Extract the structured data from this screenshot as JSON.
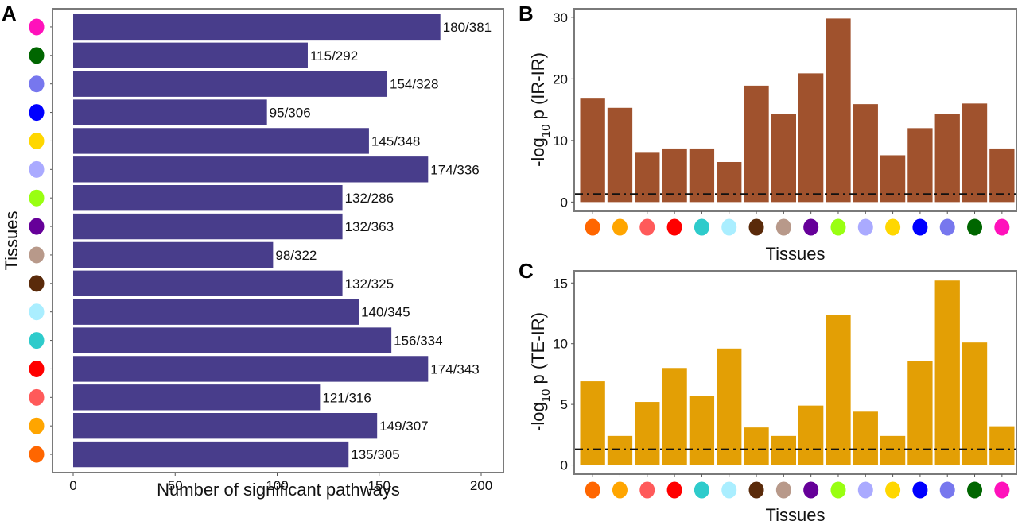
{
  "figure": {
    "panels": [
      "A",
      "B",
      "C"
    ]
  },
  "tissue_colors": [
    "#FF6600",
    "#FFA500",
    "#FF5A5A",
    "#FF0000",
    "#2ECBCB",
    "#AAEEFF",
    "#5A2A0A",
    "#B8998A",
    "#660099",
    "#99FF11",
    "#AAAAFF",
    "#FFD700",
    "#0000FF",
    "#7777EE",
    "#006600",
    "#FF11BB"
  ],
  "chart_data": [
    {
      "panel": "A",
      "type": "bar",
      "orientation": "horizontal",
      "title": "",
      "xlabel": "Number of significant pathways",
      "ylabel": "Tissues",
      "xlim": [
        0,
        210
      ],
      "xticks": [
        "0",
        "50",
        "100",
        "150",
        "200"
      ],
      "xtick_values": [
        0,
        50,
        100,
        150,
        200
      ],
      "bar_color": "#483D8B",
      "category_note": "Tissues shown as colored dots, listed bottom to top",
      "categories_colors": [
        "#FF6600",
        "#FFA500",
        "#FF5A5A",
        "#FF0000",
        "#2ECBCB",
        "#AAEEFF",
        "#5A2A0A",
        "#B8998A",
        "#660099",
        "#99FF11",
        "#AAAAFF",
        "#FFD700",
        "#0000FF",
        "#7777EE",
        "#006600",
        "#FF11BB"
      ],
      "values": [
        135,
        149,
        121,
        174,
        156,
        140,
        132,
        98,
        132,
        132,
        174,
        145,
        95,
        154,
        115,
        180
      ],
      "totals": [
        305,
        307,
        316,
        343,
        334,
        345,
        325,
        322,
        363,
        286,
        336,
        348,
        306,
        328,
        292,
        381
      ],
      "data_labels": [
        "135/305",
        "149/307",
        "121/316",
        "174/343",
        "156/334",
        "140/345",
        "132/325",
        "98/322",
        "132/363",
        "132/286",
        "174/336",
        "145/348",
        "95/306",
        "154/328",
        "115/292",
        "180/381"
      ],
      "grid": false
    },
    {
      "panel": "B",
      "type": "bar",
      "orientation": "vertical",
      "title": "",
      "xlabel": "Tissues",
      "ylabel_main": "-log",
      "ylabel_sub": "10",
      "ylabel_rest": "p (IR-IR)",
      "ylim": [
        -1.5,
        31.4
      ],
      "yticks": [
        "0",
        "10",
        "20",
        "30"
      ],
      "ytick_values": [
        0,
        10,
        20,
        30
      ],
      "bar_color": "#A0522D",
      "categories_colors": [
        "#FF6600",
        "#FFA500",
        "#FF5A5A",
        "#FF0000",
        "#2ECBCB",
        "#AAEEFF",
        "#5A2A0A",
        "#B8998A",
        "#660099",
        "#99FF11",
        "#AAAAFF",
        "#FFD700",
        "#0000FF",
        "#7777EE",
        "#006600",
        "#FF11BB"
      ],
      "values": [
        16.8,
        15.3,
        8.0,
        8.7,
        8.7,
        6.5,
        18.9,
        14.3,
        20.9,
        29.8,
        15.9,
        7.6,
        12.0,
        14.3,
        16.0,
        8.7
      ],
      "threshold": 1.3,
      "threshold_style": "dash-dot",
      "grid": false
    },
    {
      "panel": "C",
      "type": "bar",
      "orientation": "vertical",
      "title": "",
      "xlabel": "Tissues",
      "ylabel_main": "-log",
      "ylabel_sub": "10",
      "ylabel_rest": "p (TE-IR)",
      "ylim": [
        -0.75,
        16.0
      ],
      "yticks": [
        "0",
        "5",
        "10",
        "15"
      ],
      "ytick_values": [
        0,
        5,
        10,
        15
      ],
      "bar_color": "#E39F05",
      "categories_colors": [
        "#FF6600",
        "#FFA500",
        "#FF5A5A",
        "#FF0000",
        "#2ECBCB",
        "#AAEEFF",
        "#5A2A0A",
        "#B8998A",
        "#660099",
        "#99FF11",
        "#AAAAFF",
        "#FFD700",
        "#0000FF",
        "#7777EE",
        "#006600",
        "#FF11BB"
      ],
      "values": [
        6.9,
        2.4,
        5.2,
        8.0,
        5.7,
        9.6,
        3.1,
        2.4,
        4.9,
        12.4,
        4.4,
        2.4,
        8.6,
        15.2,
        10.1,
        3.2
      ],
      "threshold": 1.3,
      "threshold_style": "dash-dot",
      "grid": false
    }
  ]
}
